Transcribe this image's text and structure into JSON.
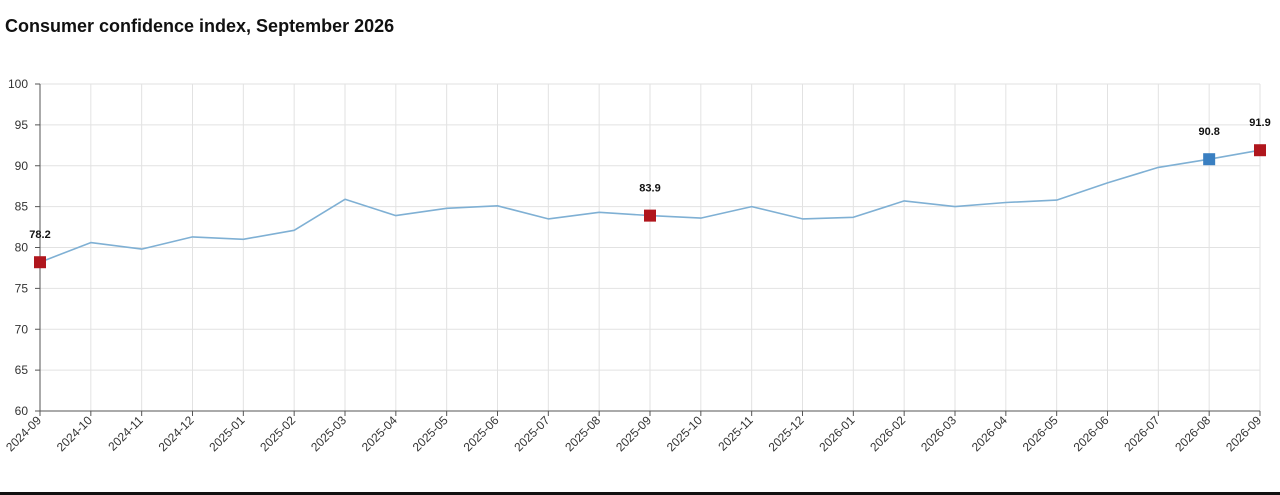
{
  "chart_data": {
    "type": "line",
    "title": "Consumer confidence index, September 2026",
    "xlabel": "",
    "ylabel": "",
    "x": [
      "2024-09",
      "2024-10",
      "2024-11",
      "2024-12",
      "2025-01",
      "2025-02",
      "2025-03",
      "2025-04",
      "2025-05",
      "2025-06",
      "2025-07",
      "2025-08",
      "2025-09",
      "2025-10",
      "2025-11",
      "2025-12",
      "2026-01",
      "2026-02",
      "2026-03",
      "2026-04",
      "2026-05",
      "2026-06",
      "2026-07",
      "2026-08",
      "2026-09"
    ],
    "series": [
      {
        "values": [
          78.2,
          80.6,
          79.8,
          81.3,
          81.0,
          82.1,
          85.9,
          83.9,
          84.8,
          85.1,
          83.5,
          84.3,
          83.9,
          83.6,
          85.0,
          83.5,
          83.7,
          85.7,
          85.0,
          85.5,
          85.8,
          87.9,
          89.8,
          90.8,
          91.9
        ],
        "color": "#7fb0d4"
      }
    ],
    "highlights": [
      {
        "x": "2024-09",
        "value": 78.2,
        "label": "78.2",
        "color": "#b0161d"
      },
      {
        "x": "2025-09",
        "value": 83.9,
        "label": "83.9",
        "color": "#b0161d"
      },
      {
        "x": "2026-08",
        "value": 90.8,
        "label": "90.8",
        "color": "#3a7fc1"
      },
      {
        "x": "2026-09",
        "value": 91.9,
        "label": "91.9",
        "color": "#b0161d"
      }
    ],
    "ylim": [
      60,
      100
    ],
    "yticks": [
      60,
      65,
      70,
      75,
      80,
      85,
      90,
      95,
      100
    ],
    "grid": true,
    "legend": "none"
  }
}
